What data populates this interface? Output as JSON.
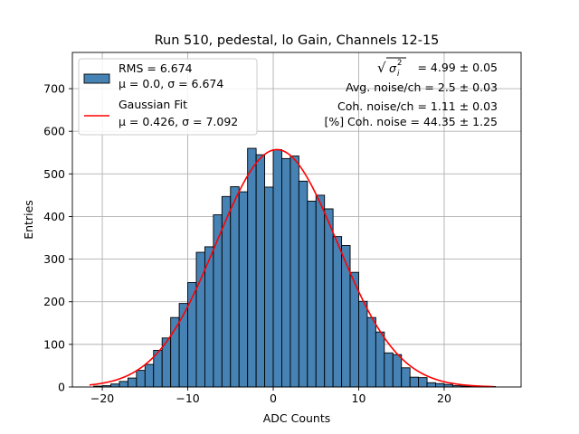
{
  "chart_data": {
    "type": "bar",
    "title": "Run 510, pedestal, lo Gain, Channels 12-15",
    "xlabel": "ADC Counts",
    "ylabel": "Entries",
    "xlim": [
      -23.5,
      29.0
    ],
    "ylim": [
      0,
      785
    ],
    "xticks": [
      -20,
      -10,
      0,
      10,
      20
    ],
    "yticks": [
      0,
      100,
      200,
      300,
      400,
      500,
      600,
      700
    ],
    "grid": true,
    "legend_position": "upper-left",
    "bin_edges": [
      -21,
      -20,
      -19,
      -18,
      -17,
      -16,
      -15,
      -14,
      -13,
      -12,
      -11,
      -10,
      -9,
      -8,
      -7,
      -6,
      -5,
      -4,
      -3,
      -2,
      -1,
      0,
      1,
      2,
      3,
      4,
      5,
      6,
      7,
      8,
      9,
      10,
      11,
      12,
      13,
      14,
      15,
      16,
      17,
      18,
      19,
      20,
      21,
      22,
      23,
      24,
      25,
      26
    ],
    "counts": [
      2,
      3,
      7,
      13,
      21,
      39,
      53,
      86,
      115,
      163,
      196,
      245,
      316,
      329,
      404,
      447,
      470,
      458,
      560,
      545,
      469,
      557,
      536,
      542,
      483,
      436,
      450,
      418,
      353,
      332,
      269,
      201,
      163,
      129,
      80,
      76,
      45,
      23,
      22,
      10,
      8,
      6,
      3,
      2,
      2,
      1,
      1
    ],
    "fit": {
      "mu": 0.426,
      "sigma": 7.092,
      "amplitude": 557,
      "x_range": [
        -21.5,
        25.8
      ]
    },
    "colors": {
      "bars": "#4682b4",
      "bar_edge": "#000000",
      "fit_line": "#ff0000",
      "grid": "#b0b0b0"
    },
    "legend": [
      {
        "label_line1": "RMS = 6.674",
        "label_line2": "μ = 0.0, σ = 6.674",
        "marker": "patch"
      },
      {
        "label_line1": "Gaussian Fit",
        "label_line2": "μ = 0.426, σ = 7.092",
        "marker": "line"
      }
    ],
    "annotations": {
      "sigma_value": "= 4.99 ± 0.05",
      "avg_noise": "Avg. noise/ch = 2.5 ± 0.03",
      "coh_noise": "Coh. noise/ch = 1.11 ± 0.03",
      "coh_pct": "[%] Coh. noise = 44.35 ± 1.25"
    }
  }
}
